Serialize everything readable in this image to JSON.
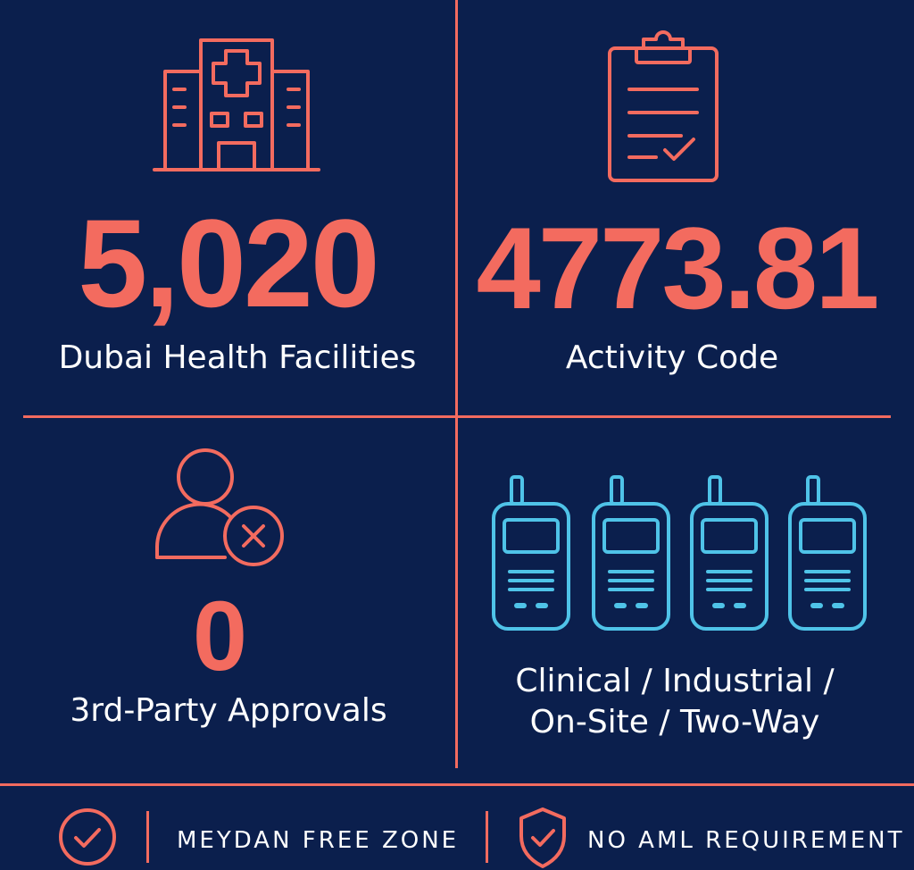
{
  "colors": {
    "background": "#0b1f4d",
    "accent": "#f36b5f",
    "radio_icon": "#4fc3e8",
    "text": "#ffffff"
  },
  "panels": {
    "facilities": {
      "icon": "hospital-icon",
      "value": "5,020",
      "label": "Dubai Health Facilities"
    },
    "activity": {
      "icon": "clipboard-check-icon",
      "value": "4773.81",
      "label": "Activity Code"
    },
    "approvals": {
      "icon": "user-x-icon",
      "value": "0",
      "label": "3rd-Party Approvals"
    },
    "radios": {
      "icon": "walkie-talkie-icon",
      "icon_count": 4,
      "label_line1": "Clinical / Industrial /",
      "label_line2": "On-Site / Two-Way"
    }
  },
  "footer": {
    "item1": {
      "icon": "check-circle-icon",
      "text": "MEYDAN FREE ZONE"
    },
    "item2": {
      "icon": "shield-check-icon",
      "text": "NO AML REQUIREMENT"
    }
  }
}
